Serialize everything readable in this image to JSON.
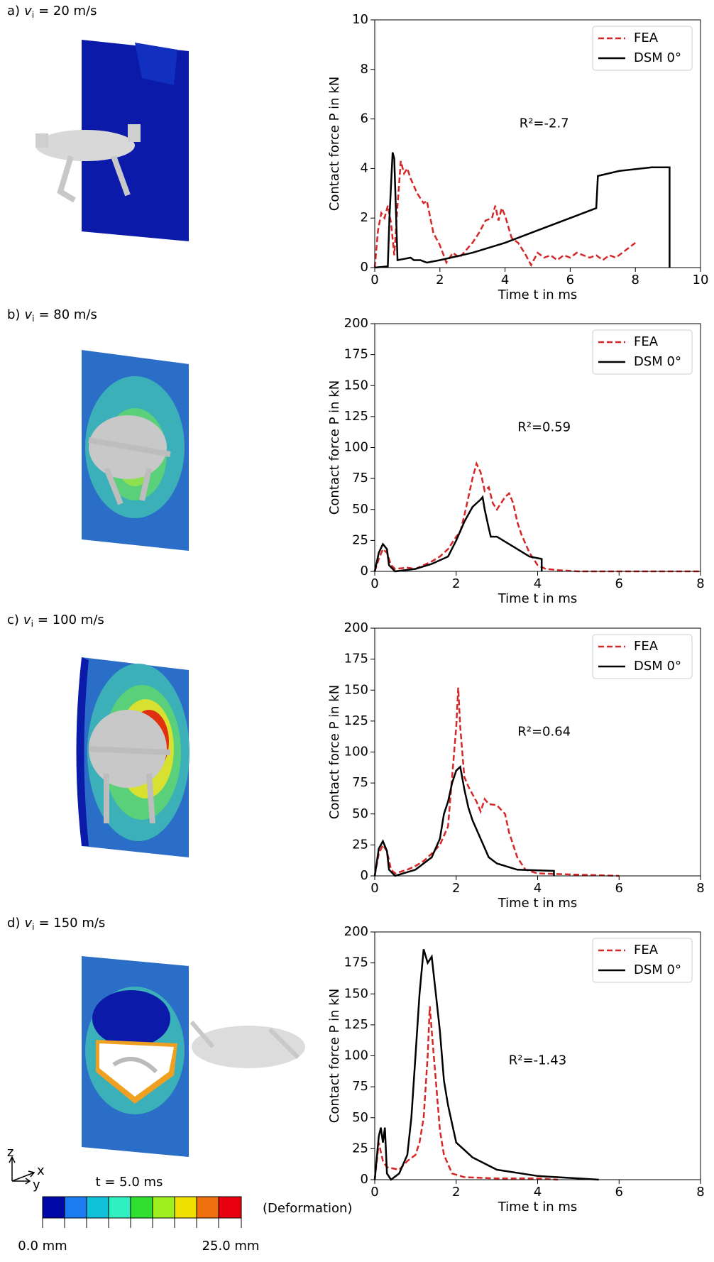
{
  "panels": [
    {
      "letter": "a)",
      "symbol": "v",
      "subscript": "i",
      "speed": "= 20 m/s"
    },
    {
      "letter": "b)",
      "symbol": "v",
      "subscript": "i",
      "speed": "= 80 m/s"
    },
    {
      "letter": "c)",
      "symbol": "v",
      "subscript": "i",
      "speed": "= 100 m/s"
    },
    {
      "letter": "d)",
      "symbol": "v",
      "subscript": "i",
      "speed": "= 150 m/s"
    }
  ],
  "colorbar": {
    "min_label": "0.0 mm",
    "max_label": "25.0 mm",
    "title": "(Deformation)"
  },
  "time_label": "t = 5.0 ms",
  "triad": {
    "z": "z",
    "x": "x",
    "y": "y"
  },
  "chart_data": [
    {
      "type": "line",
      "xlabel": "Time t in ms",
      "ylabel": "Contact force P in kN",
      "annotation": "R²=-2.7",
      "xlim": [
        0,
        10
      ],
      "ylim": [
        0,
        10
      ],
      "xticks": [
        0,
        2,
        4,
        6,
        8,
        10
      ],
      "yticks": [
        0,
        2,
        4,
        6,
        8,
        10
      ],
      "legend": "upper right",
      "series": [
        {
          "name": "FEA",
          "color": "#d62728",
          "style": "dashed",
          "x": [
            0,
            0.1,
            0.2,
            0.3,
            0.4,
            0.5,
            0.6,
            0.7,
            0.8,
            0.9,
            1.0,
            1.1,
            1.3,
            1.5,
            1.6,
            1.8,
            2.0,
            2.2,
            2.4,
            2.6,
            2.8,
            3.0,
            3.2,
            3.4,
            3.6,
            3.7,
            3.8,
            3.9,
            4.0,
            4.2,
            4.4,
            4.6,
            4.8,
            5.0,
            5.2,
            5.4,
            5.6,
            5.8,
            6.0,
            6.2,
            6.4,
            6.6,
            6.8,
            7.0,
            7.2,
            7.4,
            7.6,
            7.8,
            8.0
          ],
          "values": [
            0,
            1.5,
            2.2,
            2.0,
            2.5,
            1.8,
            0.5,
            2.5,
            4.3,
            3.8,
            4.0,
            3.6,
            3.0,
            2.6,
            2.7,
            1.4,
            0.9,
            0.2,
            0.6,
            0.4,
            0.7,
            1.0,
            1.4,
            1.9,
            2.0,
            2.5,
            1.9,
            2.4,
            2.1,
            1.2,
            1.0,
            0.6,
            0.1,
            0.6,
            0.4,
            0.5,
            0.3,
            0.5,
            0.4,
            0.6,
            0.5,
            0.4,
            0.5,
            0.3,
            0.5,
            0.4,
            0.6,
            0.8,
            1.0
          ]
        },
        {
          "name": "DSM 0°",
          "color": "#000000",
          "style": "solid",
          "x": [
            0,
            0.4,
            0.45,
            0.55,
            0.6,
            0.7,
            0.9,
            1.1,
            1.2,
            1.4,
            1.6,
            2,
            3,
            4,
            5,
            6,
            6.8,
            6.85,
            7.5,
            8.5,
            9.05,
            9.05
          ],
          "values": [
            0,
            0.05,
            2,
            4.65,
            4.4,
            0.3,
            0.35,
            0.4,
            0.3,
            0.3,
            0.2,
            0.3,
            0.6,
            1.0,
            1.5,
            2.0,
            2.4,
            3.7,
            3.9,
            4.05,
            4.05,
            0
          ]
        }
      ]
    },
    {
      "type": "line",
      "xlabel": "Time t in ms",
      "ylabel": "Contact force P in kN",
      "annotation": "R²=0.59",
      "xlim": [
        0,
        8
      ],
      "ylim": [
        0,
        200
      ],
      "xticks": [
        0,
        2,
        4,
        6,
        8
      ],
      "yticks": [
        0,
        25,
        50,
        75,
        100,
        125,
        150,
        175,
        200
      ],
      "legend": "upper right",
      "series": [
        {
          "name": "FEA",
          "color": "#d62728",
          "style": "dashed",
          "x": [
            0,
            0.1,
            0.2,
            0.3,
            0.4,
            0.5,
            0.8,
            1.0,
            1.2,
            1.4,
            1.6,
            1.8,
            2.0,
            2.1,
            2.2,
            2.3,
            2.4,
            2.5,
            2.6,
            2.7,
            2.8,
            2.9,
            3.0,
            3.1,
            3.2,
            3.3,
            3.4,
            3.5,
            3.6,
            3.8,
            4.0,
            4.2,
            4.5,
            5,
            8
          ],
          "values": [
            0,
            10,
            18,
            15,
            5,
            2,
            3,
            2,
            5,
            8,
            12,
            18,
            28,
            32,
            45,
            60,
            75,
            87,
            80,
            65,
            68,
            55,
            50,
            55,
            60,
            63,
            55,
            40,
            30,
            15,
            5,
            2,
            1,
            0,
            0
          ]
        },
        {
          "name": "DSM 0°",
          "color": "#000000",
          "style": "solid",
          "x": [
            0,
            0.1,
            0.2,
            0.3,
            0.35,
            0.5,
            1,
            1.4,
            1.8,
            2.0,
            2.2,
            2.4,
            2.5,
            2.6,
            2.65,
            2.7,
            2.8,
            2.85,
            3.0,
            3.4,
            3.8,
            4.1,
            4.1
          ],
          "values": [
            0,
            15,
            22,
            18,
            5,
            0,
            2,
            6,
            12,
            25,
            40,
            52,
            55,
            58,
            60,
            50,
            35,
            28,
            28,
            20,
            12,
            10,
            0
          ]
        }
      ]
    },
    {
      "type": "line",
      "xlabel": "Time t in ms",
      "ylabel": "Contact force P in kN",
      "annotation": "R²=0.64",
      "xlim": [
        0,
        8
      ],
      "ylim": [
        0,
        200
      ],
      "xticks": [
        0,
        2,
        4,
        6,
        8
      ],
      "yticks": [
        0,
        25,
        50,
        75,
        100,
        125,
        150,
        175,
        200
      ],
      "legend": "upper right",
      "series": [
        {
          "name": "FEA",
          "color": "#d62728",
          "style": "dashed",
          "x": [
            0,
            0.1,
            0.2,
            0.3,
            0.4,
            0.5,
            0.8,
            1.0,
            1.2,
            1.4,
            1.6,
            1.8,
            1.9,
            2.0,
            2.05,
            2.1,
            2.2,
            2.3,
            2.5,
            2.6,
            2.7,
            2.8,
            3.0,
            3.2,
            3.3,
            3.5,
            3.7,
            4,
            5,
            6
          ],
          "values": [
            0,
            18,
            25,
            20,
            5,
            2,
            5,
            8,
            12,
            18,
            25,
            40,
            80,
            120,
            152,
            120,
            80,
            72,
            60,
            52,
            62,
            58,
            57,
            50,
            35,
            15,
            5,
            2,
            1,
            0
          ]
        },
        {
          "name": "DSM 0°",
          "color": "#000000",
          "style": "solid",
          "x": [
            0,
            0.1,
            0.2,
            0.3,
            0.35,
            0.5,
            1,
            1.4,
            1.6,
            1.7,
            1.8,
            1.9,
            2.0,
            2.1,
            2.2,
            2.3,
            2.4,
            2.6,
            2.8,
            3.0,
            3.5,
            4.4,
            4.4
          ],
          "values": [
            0,
            22,
            28,
            20,
            5,
            0,
            5,
            15,
            30,
            50,
            60,
            75,
            85,
            88,
            70,
            55,
            45,
            30,
            15,
            10,
            5,
            4,
            0
          ]
        }
      ]
    },
    {
      "type": "line",
      "xlabel": "Time t in ms",
      "ylabel": "Contact force P in kN",
      "annotation": "R²=-1.43",
      "xlim": [
        0,
        8
      ],
      "ylim": [
        0,
        200
      ],
      "xticks": [
        0,
        2,
        4,
        6,
        8
      ],
      "yticks": [
        0,
        25,
        50,
        75,
        100,
        125,
        150,
        175,
        200
      ],
      "legend": "upper right",
      "series": [
        {
          "name": "FEA",
          "color": "#d62728",
          "style": "dashed",
          "x": [
            0,
            0.1,
            0.2,
            0.3,
            0.6,
            0.8,
            1.0,
            1.1,
            1.2,
            1.3,
            1.35,
            1.4,
            1.5,
            1.6,
            1.7,
            1.9,
            2.2,
            3,
            4,
            4.5
          ],
          "values": [
            0,
            30,
            15,
            10,
            8,
            15,
            20,
            30,
            50,
            100,
            140,
            120,
            80,
            40,
            20,
            5,
            2,
            1,
            1,
            0
          ]
        },
        {
          "name": "DSM 0°",
          "color": "#000000",
          "style": "solid",
          "x": [
            0,
            0.1,
            0.15,
            0.2,
            0.25,
            0.3,
            0.4,
            0.6,
            0.8,
            0.9,
            1.0,
            1.1,
            1.2,
            1.3,
            1.4,
            1.5,
            1.6,
            1.7,
            1.8,
            2.0,
            2.4,
            3,
            4,
            5,
            5.5
          ],
          "values": [
            0,
            35,
            42,
            30,
            42,
            5,
            0,
            5,
            20,
            50,
            100,
            150,
            186,
            175,
            180,
            150,
            120,
            80,
            60,
            30,
            18,
            8,
            3,
            1,
            0
          ]
        }
      ]
    }
  ]
}
